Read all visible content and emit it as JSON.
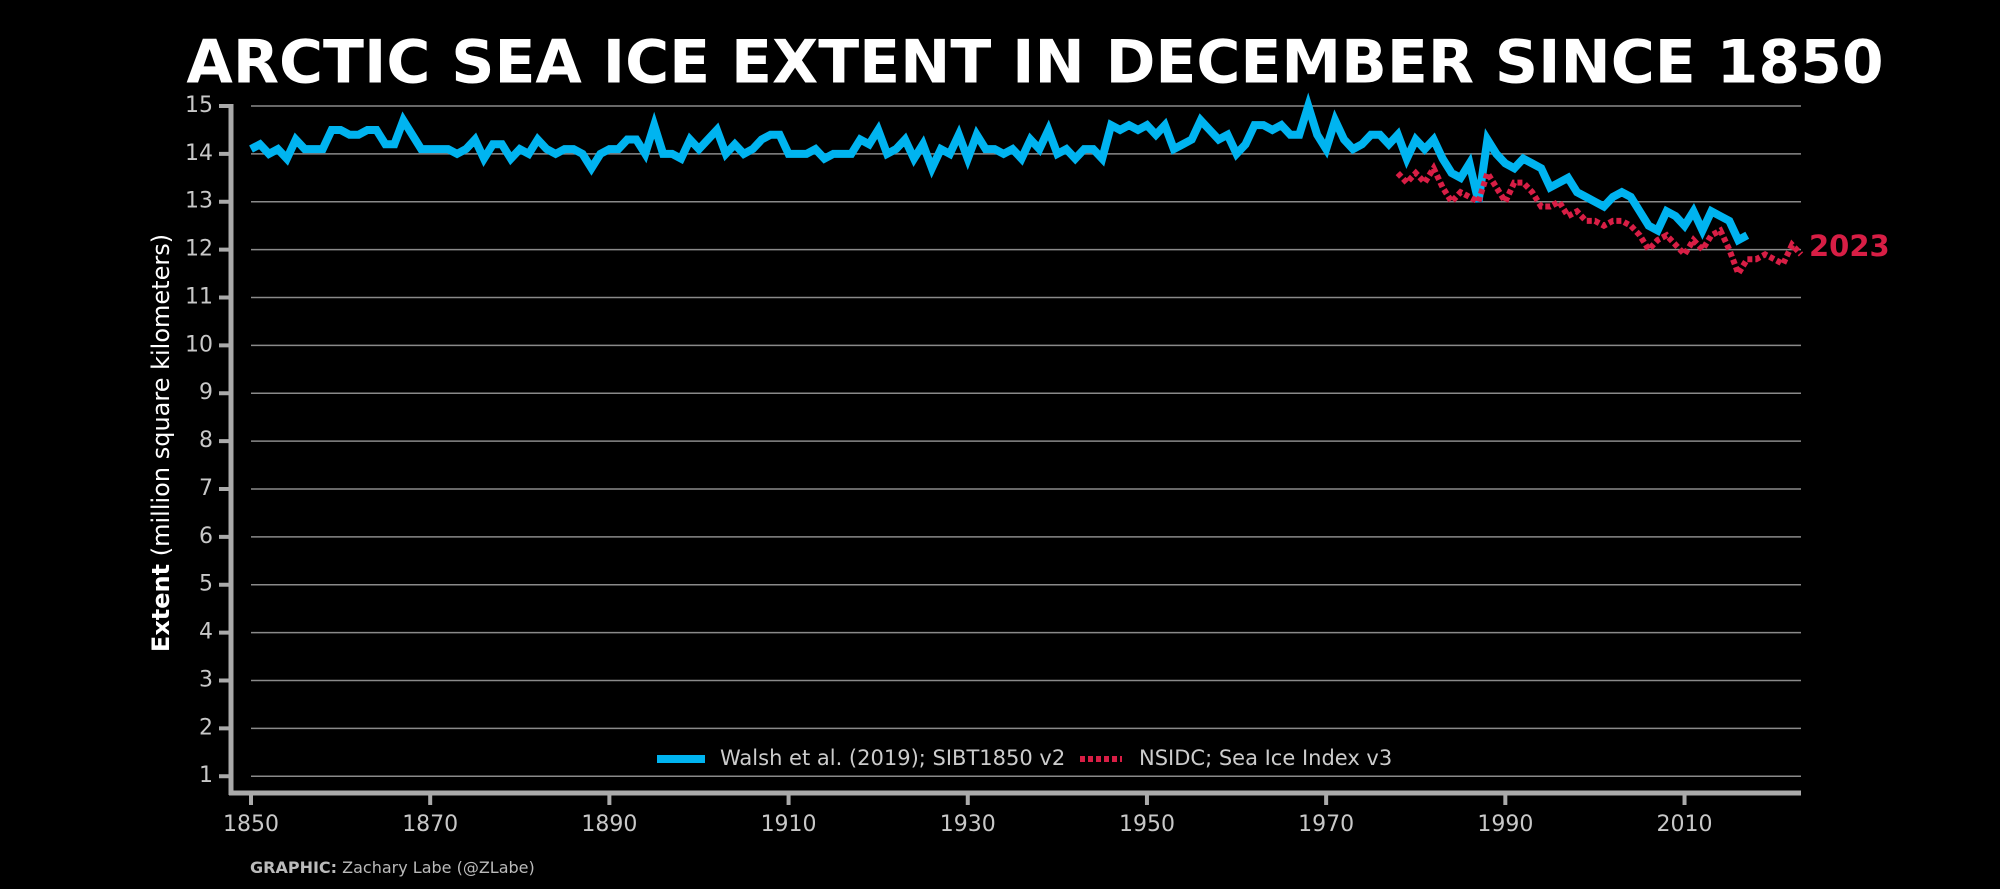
{
  "chart_data": {
    "type": "line",
    "title": "ARCTIC SEA ICE EXTENT IN DECEMBER SINCE 1850",
    "y_label_bold": "Extent",
    "y_label": "(million square kilometers)",
    "annotation": "2023",
    "credit_bold": "GRAPHIC:",
    "credit": "Zachary Labe (@ZLabe)",
    "xlim": [
      1850,
      2023
    ],
    "xticks": [
      1850,
      1870,
      1890,
      1910,
      1930,
      1950,
      1970,
      1990,
      2010
    ],
    "ylim": [
      0.65,
      15
    ],
    "yticks": [
      1,
      2,
      3,
      4,
      5,
      6,
      7,
      8,
      9,
      10,
      11,
      12,
      13,
      14,
      15
    ],
    "grid": true,
    "legend": "bottom",
    "series": [
      {
        "name": "Walsh et al. (2019); SIBT1850 v2",
        "color": "#00b4f0",
        "style": "solid",
        "x_start": 1850,
        "values": [
          14.1,
          14.2,
          14.0,
          14.1,
          13.9,
          14.3,
          14.1,
          14.1,
          14.1,
          14.5,
          14.5,
          14.4,
          14.4,
          14.5,
          14.5,
          14.2,
          14.2,
          14.7,
          14.4,
          14.1,
          14.1,
          14.1,
          14.1,
          14.0,
          14.1,
          14.3,
          13.9,
          14.2,
          14.2,
          13.9,
          14.1,
          14.0,
          14.3,
          14.1,
          14.0,
          14.1,
          14.1,
          14.0,
          13.7,
          14.0,
          14.1,
          14.1,
          14.3,
          14.3,
          14.0,
          14.6,
          14.0,
          14.0,
          13.9,
          14.3,
          14.1,
          14.3,
          14.5,
          14.0,
          14.2,
          14.0,
          14.1,
          14.3,
          14.4,
          14.4,
          14.0,
          14.0,
          14.0,
          14.1,
          13.9,
          14.0,
          14.0,
          14.0,
          14.3,
          14.2,
          14.5,
          14.0,
          14.1,
          14.3,
          13.9,
          14.2,
          13.7,
          14.1,
          14.0,
          14.4,
          13.9,
          14.4,
          14.1,
          14.1,
          14.0,
          14.1,
          13.9,
          14.3,
          14.1,
          14.5,
          14.0,
          14.1,
          13.9,
          14.1,
          14.1,
          13.9,
          14.6,
          14.5,
          14.6,
          14.5,
          14.6,
          14.4,
          14.6,
          14.1,
          14.2,
          14.3,
          14.7,
          14.5,
          14.3,
          14.4,
          14.0,
          14.2,
          14.6,
          14.6,
          14.5,
          14.6,
          14.4,
          14.4,
          15.0,
          14.4,
          14.1,
          14.7,
          14.3,
          14.1,
          14.2,
          14.4,
          14.4,
          14.2,
          14.4,
          13.9,
          14.3,
          14.1,
          14.3,
          13.9,
          13.6,
          13.5,
          13.8,
          13.0,
          14.3,
          14.0,
          13.8,
          13.7,
          13.9,
          13.8,
          13.7,
          13.3,
          13.4,
          13.5,
          13.2,
          13.1,
          13.0,
          12.9,
          13.1,
          13.2,
          13.1,
          12.8,
          12.5,
          12.4,
          12.8,
          12.7,
          12.5,
          12.8,
          12.4,
          12.8,
          12.7,
          12.6,
          12.2,
          12.3
        ]
      },
      {
        "name": "NSIDC; Sea Ice Index v3",
        "color": "#d81e45",
        "style": "dashed",
        "x_start": 1978,
        "values": [
          13.6,
          13.4,
          13.6,
          13.4,
          13.7,
          13.3,
          13.0,
          13.2,
          13.1,
          13.0,
          13.6,
          13.3,
          13.0,
          13.4,
          13.4,
          13.2,
          12.9,
          12.9,
          13.0,
          12.7,
          12.8,
          12.6,
          12.6,
          12.5,
          12.6,
          12.6,
          12.5,
          12.3,
          12.0,
          12.2,
          12.3,
          12.1,
          11.9,
          12.2,
          12.0,
          12.3,
          12.4,
          12.0,
          11.5,
          11.8,
          11.8,
          11.9,
          11.8,
          11.7,
          12.1,
          11.9
        ]
      }
    ]
  }
}
